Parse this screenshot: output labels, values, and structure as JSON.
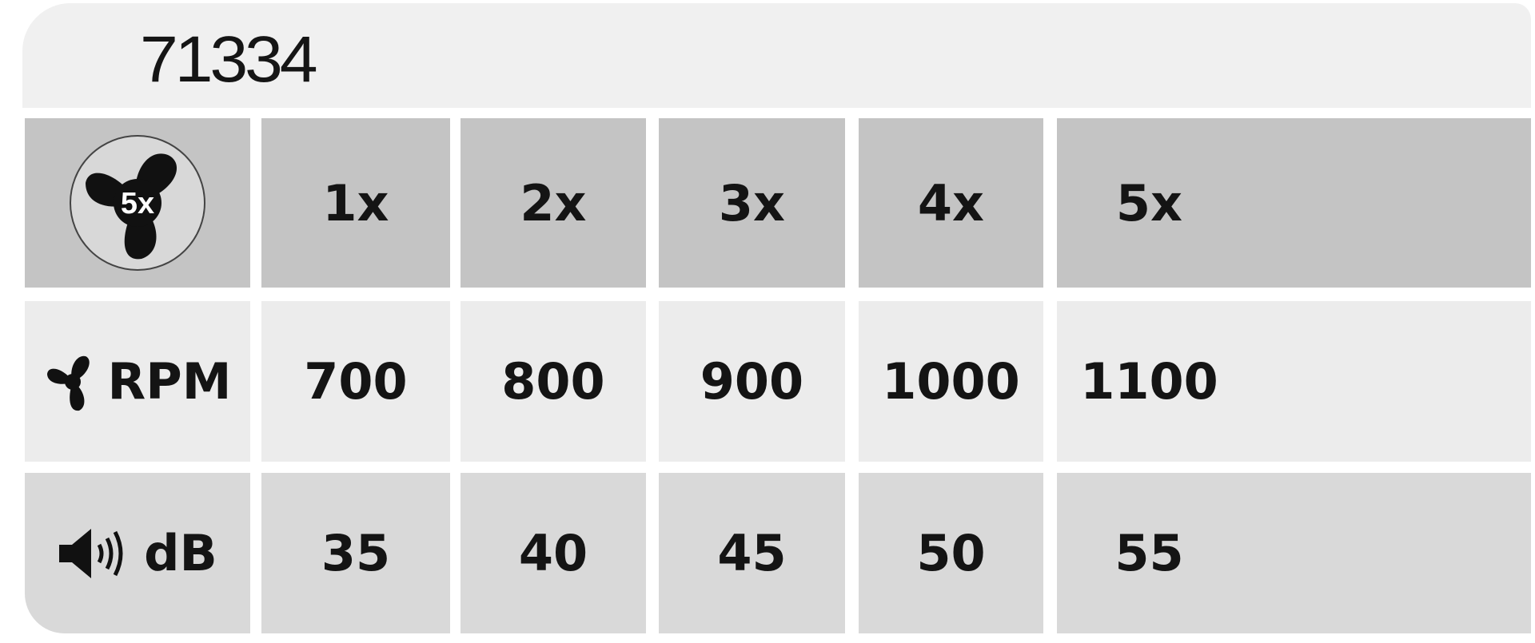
{
  "header": {
    "title": "71334"
  },
  "table": {
    "header_row": {
      "icon": "fan-5x-icon",
      "icon_label": "5x",
      "levels": [
        "1x",
        "2x",
        "3x",
        "4x",
        "5x"
      ]
    },
    "rows": [
      {
        "icon": "fan-icon",
        "label": "RPM",
        "values": [
          "700",
          "800",
          "900",
          "1000",
          "1100"
        ]
      },
      {
        "icon": "speaker-icon",
        "label": "dB",
        "values": [
          "35",
          "40",
          "45",
          "50",
          "55"
        ]
      }
    ]
  },
  "colors": {
    "header_bg": "#f0f0f0",
    "row1_bg": "#c4c4c4",
    "row2_bg": "#ececec",
    "row3_bg": "#d9d9d9",
    "text": "#141414"
  }
}
